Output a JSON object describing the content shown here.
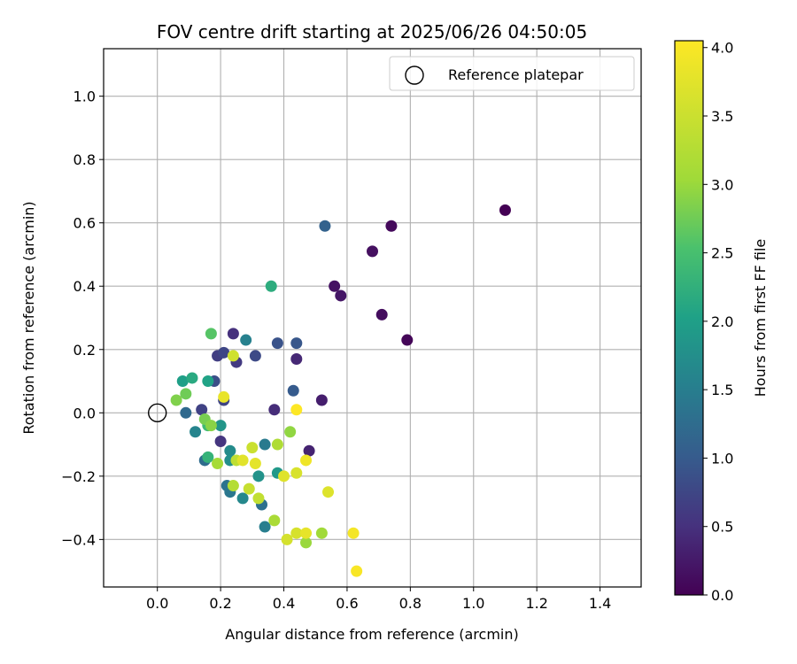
{
  "chart_data": {
    "type": "scatter",
    "title": "FOV centre drift starting at 2025/06/26 04:50:05",
    "xlabel": "Angular distance from reference (arcmin)",
    "ylabel": "Rotation from reference (arcmin)",
    "xlim": [
      -0.17,
      1.53
    ],
    "ylim": [
      -0.55,
      1.15
    ],
    "xticks": [
      "0.0",
      "0.2",
      "0.4",
      "0.6",
      "0.8",
      "1.0",
      "1.2",
      "1.4"
    ],
    "yticks": [
      "−0.4",
      "−0.2",
      "0.0",
      "0.2",
      "0.4",
      "0.6",
      "0.8",
      "1.0"
    ],
    "xtick_values": [
      0.0,
      0.2,
      0.4,
      0.6,
      0.8,
      1.0,
      1.2,
      1.4
    ],
    "ytick_values": [
      -0.4,
      -0.2,
      0.0,
      0.2,
      0.4,
      0.6,
      0.8,
      1.0
    ],
    "grid": true,
    "legend": {
      "placement": "top-right",
      "entries": [
        "Reference platepar"
      ]
    },
    "reference_point": {
      "x": 0.0,
      "y": 0.0,
      "label": "Reference platepar"
    },
    "colorbar": {
      "label": "Hours from first FF file",
      "range": [
        0.0,
        4.05
      ],
      "ticks": [
        "0.0",
        "0.5",
        "1.0",
        "1.5",
        "2.0",
        "2.5",
        "3.0",
        "3.5",
        "4.0"
      ],
      "tick_values": [
        0.0,
        0.5,
        1.0,
        1.5,
        2.0,
        2.5,
        3.0,
        3.5,
        4.0
      ],
      "colormap": "viridis"
    },
    "points": [
      {
        "x": 1.1,
        "y": 0.64,
        "h": 0.0
      },
      {
        "x": 0.79,
        "y": 0.23,
        "h": 0.05
      },
      {
        "x": 0.74,
        "y": 0.59,
        "h": 0.08
      },
      {
        "x": 0.71,
        "y": 0.31,
        "h": 0.12
      },
      {
        "x": 0.68,
        "y": 0.51,
        "h": 0.15
      },
      {
        "x": 0.56,
        "y": 0.4,
        "h": 0.18
      },
      {
        "x": 0.58,
        "y": 0.37,
        "h": 0.22
      },
      {
        "x": 0.52,
        "y": 0.04,
        "h": 0.3
      },
      {
        "x": 0.48,
        "y": -0.12,
        "h": 0.35
      },
      {
        "x": 0.44,
        "y": 0.17,
        "h": 0.4
      },
      {
        "x": 0.37,
        "y": 0.01,
        "h": 0.45
      },
      {
        "x": 0.24,
        "y": 0.25,
        "h": 0.5
      },
      {
        "x": 0.2,
        "y": -0.09,
        "h": 0.55
      },
      {
        "x": 0.25,
        "y": 0.16,
        "h": 0.6
      },
      {
        "x": 0.19,
        "y": 0.18,
        "h": 0.65
      },
      {
        "x": 0.14,
        "y": 0.01,
        "h": 0.7
      },
      {
        "x": 0.21,
        "y": 0.04,
        "h": 0.72
      },
      {
        "x": 0.21,
        "y": 0.19,
        "h": 0.75
      },
      {
        "x": 0.31,
        "y": 0.18,
        "h": 0.8
      },
      {
        "x": 0.18,
        "y": 0.1,
        "h": 0.85
      },
      {
        "x": 0.38,
        "y": 0.22,
        "h": 0.9
      },
      {
        "x": 0.44,
        "y": 0.22,
        "h": 0.95
      },
      {
        "x": 0.43,
        "y": 0.07,
        "h": 1.0
      },
      {
        "x": 0.53,
        "y": 0.59,
        "h": 1.1
      },
      {
        "x": 0.09,
        "y": 0.0,
        "h": 1.2
      },
      {
        "x": 0.15,
        "y": -0.15,
        "h": 1.25
      },
      {
        "x": 0.33,
        "y": -0.29,
        "h": 1.3
      },
      {
        "x": 0.22,
        "y": -0.23,
        "h": 1.35
      },
      {
        "x": 0.23,
        "y": -0.25,
        "h": 1.4
      },
      {
        "x": 0.34,
        "y": -0.1,
        "h": 1.45
      },
      {
        "x": 0.34,
        "y": -0.36,
        "h": 1.5
      },
      {
        "x": 0.28,
        "y": 0.23,
        "h": 1.55
      },
      {
        "x": 0.12,
        "y": -0.06,
        "h": 1.6
      },
      {
        "x": 0.27,
        "y": -0.27,
        "h": 1.65
      },
      {
        "x": 0.23,
        "y": -0.12,
        "h": 1.7
      },
      {
        "x": 0.23,
        "y": -0.15,
        "h": 1.75
      },
      {
        "x": 0.32,
        "y": -0.2,
        "h": 1.8
      },
      {
        "x": 0.2,
        "y": -0.04,
        "h": 1.85
      },
      {
        "x": 0.38,
        "y": -0.19,
        "h": 1.9
      },
      {
        "x": 0.08,
        "y": 0.1,
        "h": 2.0
      },
      {
        "x": 0.16,
        "y": 0.1,
        "h": 2.05
      },
      {
        "x": 0.11,
        "y": 0.11,
        "h": 2.15
      },
      {
        "x": 0.36,
        "y": 0.4,
        "h": 2.2
      },
      {
        "x": 0.16,
        "y": -0.14,
        "h": 2.3
      },
      {
        "x": 0.16,
        "y": -0.04,
        "h": 2.4
      },
      {
        "x": 0.17,
        "y": 0.25,
        "h": 2.6
      },
      {
        "x": 0.09,
        "y": 0.06,
        "h": 2.75
      },
      {
        "x": 0.15,
        "y": -0.02,
        "h": 2.8
      },
      {
        "x": 0.06,
        "y": 0.04,
        "h": 2.85
      },
      {
        "x": 0.17,
        "y": -0.04,
        "h": 2.9
      },
      {
        "x": 0.42,
        "y": -0.06,
        "h": 2.95
      },
      {
        "x": 0.47,
        "y": -0.41,
        "h": 3.0
      },
      {
        "x": 0.52,
        "y": -0.38,
        "h": 3.05
      },
      {
        "x": 0.19,
        "y": -0.16,
        "h": 3.1
      },
      {
        "x": 0.37,
        "y": -0.34,
        "h": 3.15
      },
      {
        "x": 0.38,
        "y": -0.1,
        "h": 3.2
      },
      {
        "x": 0.24,
        "y": -0.23,
        "h": 3.25
      },
      {
        "x": 0.25,
        "y": -0.15,
        "h": 3.35
      },
      {
        "x": 0.32,
        "y": -0.27,
        "h": 3.4
      },
      {
        "x": 0.29,
        "y": -0.24,
        "h": 3.45
      },
      {
        "x": 0.3,
        "y": -0.11,
        "h": 3.5
      },
      {
        "x": 0.24,
        "y": 0.18,
        "h": 3.55
      },
      {
        "x": 0.41,
        "y": -0.4,
        "h": 3.6
      },
      {
        "x": 0.44,
        "y": -0.38,
        "h": 3.62
      },
      {
        "x": 0.44,
        "y": -0.19,
        "h": 3.65
      },
      {
        "x": 0.54,
        "y": -0.25,
        "h": 3.7
      },
      {
        "x": 0.4,
        "y": -0.2,
        "h": 3.72
      },
      {
        "x": 0.27,
        "y": -0.15,
        "h": 3.75
      },
      {
        "x": 0.31,
        "y": -0.16,
        "h": 3.78
      },
      {
        "x": 0.47,
        "y": -0.38,
        "h": 3.8
      },
      {
        "x": 0.21,
        "y": 0.05,
        "h": 3.82
      },
      {
        "x": 0.47,
        "y": -0.15,
        "h": 3.9
      },
      {
        "x": 0.62,
        "y": -0.38,
        "h": 3.95
      },
      {
        "x": 0.63,
        "y": -0.5,
        "h": 4.0
      },
      {
        "x": 0.44,
        "y": 0.01,
        "h": 4.05
      }
    ]
  }
}
